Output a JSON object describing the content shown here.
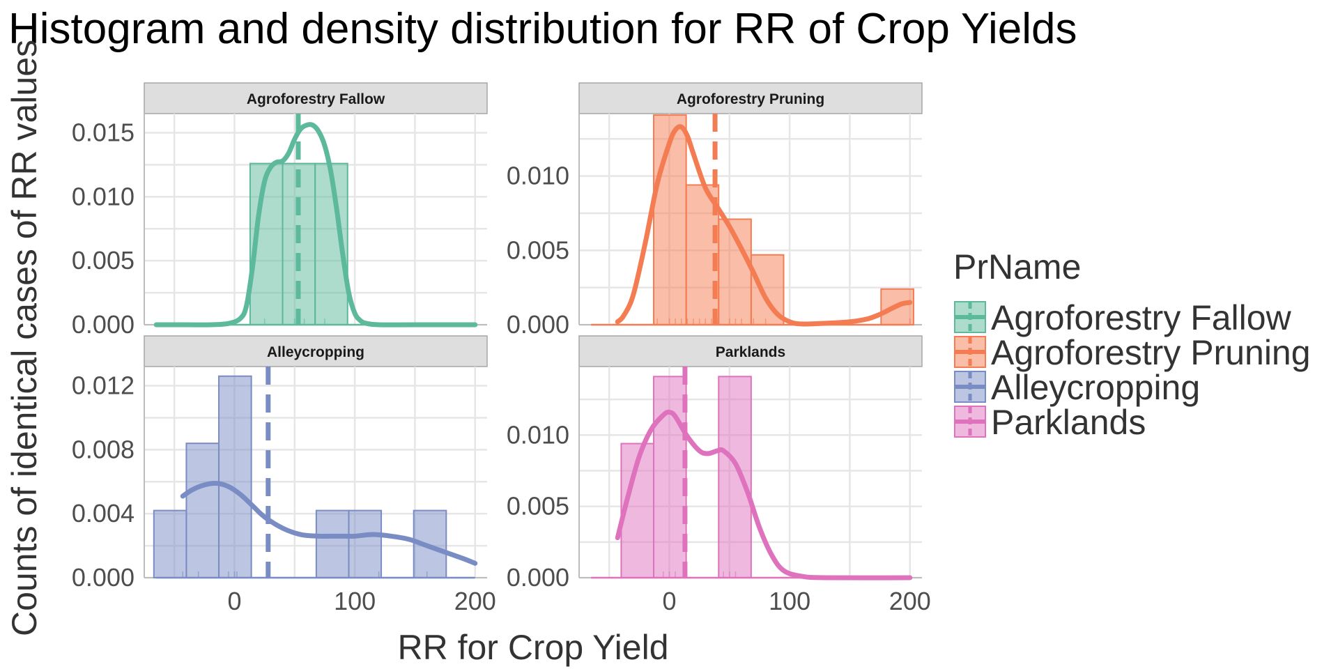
{
  "chart_data": {
    "type": "histogram",
    "title": "Histogram and density distribution for RR of Crop Yields",
    "xlabel": "RR for Crop Yield",
    "ylabel": "Counts of identical cases of RR values",
    "x_ticks": [
      0,
      100,
      200
    ],
    "x_range": [
      -75,
      210
    ],
    "grid": true,
    "legend": {
      "title": "PrName",
      "position": "right",
      "items": [
        "Agroforestry Fallow",
        "Agroforestry Pruning",
        "Alleycropping",
        "Parklands"
      ]
    },
    "panels": [
      {
        "name": "Agroforestry Fallow",
        "color": "#5cb99b",
        "y_ticks": [
          0.0,
          0.005,
          0.01,
          0.015
        ],
        "y_tick_labels": [
          "0.000",
          "0.005",
          "0.010",
          "0.015"
        ],
        "y_range": [
          0,
          0.0165
        ],
        "bins": [
          {
            "x0": 13,
            "x1": 40,
            "density": 0.0126
          },
          {
            "x0": 40,
            "x1": 67,
            "density": 0.0126
          },
          {
            "x0": 67,
            "x1": 94,
            "density": 0.0126
          }
        ],
        "density": [
          [
            -65,
            0
          ],
          [
            -40,
            0
          ],
          [
            -20,
            0
          ],
          [
            -5,
            0.0001
          ],
          [
            5,
            0.0005
          ],
          [
            10,
            0.0015
          ],
          [
            15,
            0.0045
          ],
          [
            20,
            0.0085
          ],
          [
            25,
            0.0112
          ],
          [
            30,
            0.0123
          ],
          [
            35,
            0.0127
          ],
          [
            40,
            0.0128
          ],
          [
            45,
            0.0134
          ],
          [
            50,
            0.0145
          ],
          [
            55,
            0.0153
          ],
          [
            60,
            0.0156
          ],
          [
            65,
            0.0156
          ],
          [
            70,
            0.0151
          ],
          [
            75,
            0.014
          ],
          [
            80,
            0.012
          ],
          [
            85,
            0.009
          ],
          [
            90,
            0.0055
          ],
          [
            95,
            0.0025
          ],
          [
            100,
            0.0009
          ],
          [
            105,
            0.0003
          ],
          [
            110,
            0.0001
          ],
          [
            120,
            0
          ],
          [
            150,
            0
          ],
          [
            200,
            0
          ]
        ],
        "mean": 53,
        "rug": [
          25,
          50,
          53,
          58,
          75
        ]
      },
      {
        "name": "Agroforestry Pruning",
        "color": "#f47c52",
        "y_ticks": [
          0.0,
          0.005,
          0.01
        ],
        "y_tick_labels": [
          "0.000",
          "0.005",
          "0.010"
        ],
        "y_range": [
          0,
          0.0142
        ],
        "bins": [
          {
            "x0": -13,
            "x1": 14,
            "density": 0.0141
          },
          {
            "x0": 14,
            "x1": 41,
            "density": 0.0094
          },
          {
            "x0": 41,
            "x1": 68,
            "density": 0.0071
          },
          {
            "x0": 68,
            "x1": 95,
            "density": 0.0047
          },
          {
            "x0": 176,
            "x1": 203,
            "density": 0.0024
          }
        ],
        "density": [
          [
            -43,
            0.0002
          ],
          [
            -38,
            0.0006
          ],
          [
            -30,
            0.002
          ],
          [
            -20,
            0.0055
          ],
          [
            -10,
            0.0095
          ],
          [
            0,
            0.0122
          ],
          [
            5,
            0.0131
          ],
          [
            10,
            0.0133
          ],
          [
            15,
            0.0127
          ],
          [
            20,
            0.0115
          ],
          [
            30,
            0.0092
          ],
          [
            40,
            0.0079
          ],
          [
            50,
            0.0066
          ],
          [
            60,
            0.0051
          ],
          [
            70,
            0.0035
          ],
          [
            80,
            0.0018
          ],
          [
            90,
            0.0007
          ],
          [
            100,
            0.0002
          ],
          [
            110,
            5e-05
          ],
          [
            130,
            0.0001
          ],
          [
            150,
            0.0002
          ],
          [
            165,
            0.0004
          ],
          [
            175,
            0.0007
          ],
          [
            185,
            0.0011
          ],
          [
            193,
            0.0014
          ],
          [
            200,
            0.0015
          ]
        ],
        "mean": 38,
        "rug": [
          -10,
          0,
          5,
          10,
          15,
          20,
          25,
          30,
          35,
          40,
          50,
          55,
          60,
          70,
          80,
          200
        ]
      },
      {
        "name": "Alleycropping",
        "color": "#7a8cc4",
        "y_ticks": [
          0.0,
          0.004,
          0.008,
          0.012
        ],
        "y_tick_labels": [
          "0.000",
          "0.004",
          "0.008",
          "0.012"
        ],
        "y_range": [
          0,
          0.0132
        ],
        "bins": [
          {
            "x0": -67,
            "x1": -40,
            "density": 0.0042
          },
          {
            "x0": -40,
            "x1": -13,
            "density": 0.0084
          },
          {
            "x0": -13,
            "x1": 14,
            "density": 0.0126
          },
          {
            "x0": 68,
            "x1": 95,
            "density": 0.0042
          },
          {
            "x0": 95,
            "x1": 122,
            "density": 0.0042
          },
          {
            "x0": 149,
            "x1": 176,
            "density": 0.0042
          }
        ],
        "density": [
          [
            -43,
            0.0051
          ],
          [
            -35,
            0.0055
          ],
          [
            -25,
            0.0058
          ],
          [
            -15,
            0.0059
          ],
          [
            -5,
            0.0057
          ],
          [
            5,
            0.0052
          ],
          [
            15,
            0.0045
          ],
          [
            25,
            0.0038
          ],
          [
            40,
            0.0031
          ],
          [
            55,
            0.0027
          ],
          [
            70,
            0.0026
          ],
          [
            85,
            0.0026
          ],
          [
            100,
            0.0026
          ],
          [
            115,
            0.0027
          ],
          [
            130,
            0.0026
          ],
          [
            145,
            0.0024
          ],
          [
            160,
            0.002
          ],
          [
            175,
            0.0016
          ],
          [
            190,
            0.0012
          ],
          [
            200,
            0.0009
          ]
        ],
        "mean": 28,
        "rug": [
          -43,
          -30,
          -5,
          0,
          2,
          120,
          160
        ]
      },
      {
        "name": "Parklands",
        "color": "#df72bd",
        "y_ticks": [
          0.0,
          0.005,
          0.01
        ],
        "y_tick_labels": [
          "0.000",
          "0.005",
          "0.010"
        ],
        "y_range": [
          0,
          0.0148
        ],
        "bins": [
          {
            "x0": -40,
            "x1": -13,
            "density": 0.0094
          },
          {
            "x0": -13,
            "x1": 14,
            "density": 0.0141
          },
          {
            "x0": 41,
            "x1": 68,
            "density": 0.0141
          }
        ],
        "density": [
          [
            -43,
            0.0028
          ],
          [
            -35,
            0.0055
          ],
          [
            -25,
            0.0085
          ],
          [
            -15,
            0.0104
          ],
          [
            -5,
            0.0114
          ],
          [
            0,
            0.0116
          ],
          [
            5,
            0.0113
          ],
          [
            15,
            0.0099
          ],
          [
            25,
            0.0089
          ],
          [
            32,
            0.0087
          ],
          [
            40,
            0.0089
          ],
          [
            45,
            0.0089
          ],
          [
            55,
            0.008
          ],
          [
            65,
            0.006
          ],
          [
            75,
            0.0035
          ],
          [
            85,
            0.0016
          ],
          [
            95,
            0.0005
          ],
          [
            110,
            0.0001
          ],
          [
            130,
            0
          ],
          [
            200,
            0
          ]
        ],
        "mean": 13,
        "rug": [
          -5,
          0,
          5,
          45,
          50,
          55
        ]
      }
    ]
  }
}
